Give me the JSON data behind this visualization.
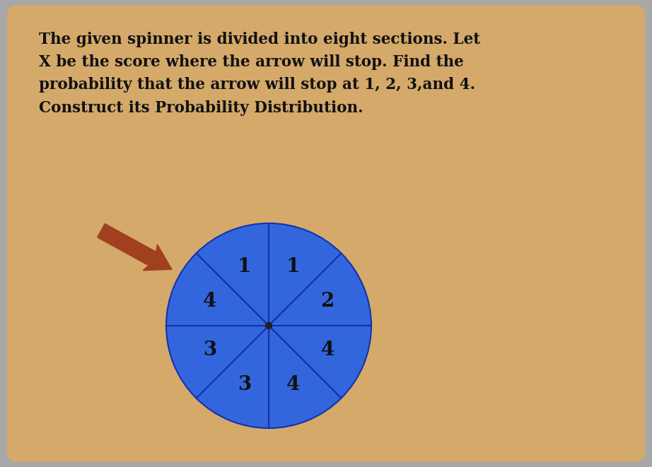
{
  "title_text": "The given spinner is divided into eight sections. Let\nX be the score where the arrow will stop. Find the\nprobability that the arrow will stop at 1, 2, 3,and 4.\nConstruct its Probability Distribution.",
  "background_color": "#D4A96A",
  "outer_bg_color": "#A8A8A8",
  "spinner_color": "#3366DD",
  "spinner_edge_color": "#1133AA",
  "n_sections": 8,
  "labels_cw_from_top_left": [
    1,
    1,
    2,
    4,
    4,
    3,
    3,
    4
  ],
  "arrow_color": "#A04020",
  "text_color": "#111111",
  "title_fontsize": 15.5,
  "fig_width": 9.22,
  "fig_height": 6.61
}
